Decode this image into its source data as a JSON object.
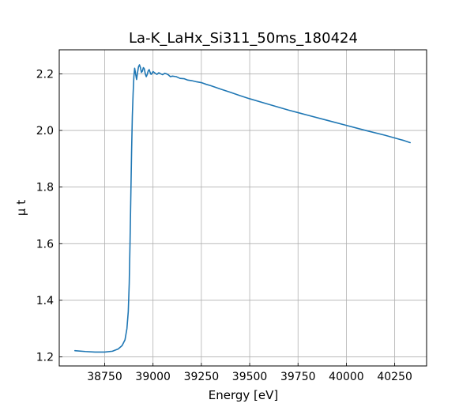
{
  "chart_data": {
    "type": "line",
    "title": "La-K_LaHx_Si311_50ms_180424",
    "xlabel": "Energy [eV]",
    "ylabel": "μ t",
    "xlim": [
      38515,
      40415
    ],
    "ylim": [
      1.168,
      2.285
    ],
    "xticks": [
      38750,
      39000,
      39250,
      39500,
      39750,
      40000,
      40250
    ],
    "yticks": [
      1.2,
      1.4,
      1.6,
      1.8,
      2.0,
      2.2
    ],
    "grid": true,
    "colors": {
      "line": "#1f77b4",
      "grid": "#b0b0b0",
      "axes": "#000000"
    },
    "series": [
      {
        "name": "",
        "x": [
          38596,
          38650,
          38700,
          38750,
          38790,
          38820,
          38840,
          38855,
          38865,
          38872,
          38877,
          38881,
          38885,
          38889,
          38893,
          38897,
          38901,
          38905,
          38910,
          38915,
          38920,
          38925,
          38930,
          38935,
          38940,
          38945,
          38950,
          38955,
          38960,
          38965,
          38970,
          38975,
          38980,
          38985,
          38990,
          38995,
          39000,
          39010,
          39020,
          39030,
          39040,
          39050,
          39060,
          39070,
          39080,
          39090,
          39100,
          39120,
          39140,
          39160,
          39180,
          39200,
          39225,
          39250,
          39275,
          39300,
          39350,
          39400,
          39450,
          39500,
          39600,
          39700,
          39800,
          39900,
          40000,
          40100,
          40200,
          40300,
          40330
        ],
        "y": [
          1.222,
          1.219,
          1.217,
          1.217,
          1.22,
          1.228,
          1.24,
          1.26,
          1.3,
          1.36,
          1.46,
          1.6,
          1.76,
          1.92,
          2.05,
          2.13,
          2.19,
          2.22,
          2.2,
          2.18,
          2.205,
          2.225,
          2.232,
          2.222,
          2.205,
          2.21,
          2.222,
          2.218,
          2.2,
          2.19,
          2.198,
          2.21,
          2.215,
          2.205,
          2.198,
          2.202,
          2.208,
          2.203,
          2.198,
          2.204,
          2.2,
          2.197,
          2.202,
          2.2,
          2.196,
          2.19,
          2.192,
          2.19,
          2.184,
          2.183,
          2.178,
          2.176,
          2.172,
          2.169,
          2.163,
          2.158,
          2.146,
          2.135,
          2.123,
          2.112,
          2.092,
          2.072,
          2.054,
          2.036,
          2.018,
          2.0,
          1.983,
          1.964,
          1.957
        ]
      }
    ]
  }
}
